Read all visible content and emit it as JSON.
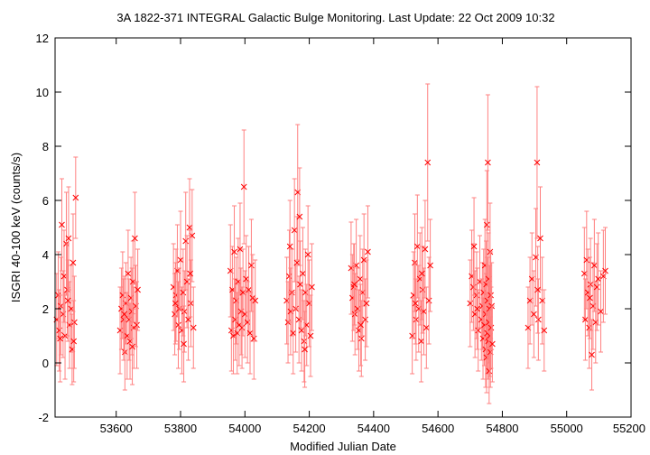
{
  "chart_data": {
    "type": "scatter",
    "title": "3A 1822-371    INTEGRAL Galactic Bulge Monitoring.  Last Update: 22 Oct 2009 10:32",
    "xlabel": "Modified Julian Date",
    "ylabel": "ISGRI 40-100 keV (counts/s)",
    "xlim": [
      53410,
      55200
    ],
    "ylim": [
      -2,
      12
    ],
    "xticks": [
      53600,
      53800,
      54000,
      54200,
      54400,
      54600,
      54800,
      55000,
      55200
    ],
    "yticks": [
      -2,
      0,
      2,
      4,
      6,
      8,
      10,
      12
    ],
    "grid": false,
    "legend": "none",
    "colors": {
      "series": "#ff0000",
      "errorbar": "#ff8080"
    },
    "series": [
      {
        "points": [
          [
            53415,
            1.6,
            1.7
          ],
          [
            53420,
            2.5,
            1.6
          ],
          [
            53423,
            1.2,
            1.5
          ],
          [
            53428,
            2.1,
            1.8
          ],
          [
            53431,
            5.1,
            1.7
          ],
          [
            53435,
            1.8,
            1.6
          ],
          [
            53438,
            3.2,
            1.7
          ],
          [
            53441,
            1.0,
            1.6
          ],
          [
            53445,
            4.4,
            1.9
          ],
          [
            53448,
            2.7,
            1.7
          ],
          [
            53452,
            4.6,
            1.9
          ],
          [
            53455,
            1.4,
            1.6
          ],
          [
            53460,
            2.0,
            1.6
          ],
          [
            53463,
            0.5,
            1.3
          ],
          [
            53466,
            3.7,
            1.8
          ],
          [
            53470,
            1.5,
            1.7
          ],
          [
            53474,
            6.1,
            1.5
          ],
          [
            53450,
            2.3,
            1.5
          ],
          [
            53426,
            0.9,
            1.6
          ],
          [
            53468,
            0.8,
            1.5
          ],
          [
            53612,
            1.2,
            1.6
          ],
          [
            53616,
            2.0,
            1.5
          ],
          [
            53620,
            2.5,
            1.6
          ],
          [
            53623,
            1.6,
            1.5
          ],
          [
            53627,
            0.4,
            1.4
          ],
          [
            53630,
            2.2,
            1.5
          ],
          [
            53634,
            1.0,
            1.6
          ],
          [
            53637,
            3.3,
            1.6
          ],
          [
            53640,
            1.6,
            1.5
          ],
          [
            53643,
            0.8,
            1.4
          ],
          [
            53646,
            2.4,
            1.5
          ],
          [
            53649,
            1.9,
            1.6
          ],
          [
            53652,
            3.0,
            1.5
          ],
          [
            53655,
            1.3,
            1.5
          ],
          [
            53658,
            4.6,
            1.7
          ],
          [
            53661,
            2.1,
            1.5
          ],
          [
            53664,
            1.4,
            1.6
          ],
          [
            53667,
            2.7,
            1.5
          ],
          [
            53625,
            1.8,
            1.4
          ],
          [
            53650,
            0.6,
            1.4
          ],
          [
            53778,
            2.8,
            1.6
          ],
          [
            53782,
            1.8,
            1.5
          ],
          [
            53786,
            2.5,
            1.7
          ],
          [
            53790,
            3.4,
            1.7
          ],
          [
            53793,
            1.4,
            1.6
          ],
          [
            53796,
            2.0,
            1.5
          ],
          [
            53800,
            3.8,
            1.8
          ],
          [
            53804,
            1.2,
            1.6
          ],
          [
            53808,
            2.6,
            1.6
          ],
          [
            53812,
            1.9,
            1.5
          ],
          [
            53816,
            4.5,
            1.8
          ],
          [
            53820,
            3.0,
            1.7
          ],
          [
            53824,
            1.6,
            1.5
          ],
          [
            53828,
            5.0,
            1.8
          ],
          [
            53832,
            2.2,
            1.6
          ],
          [
            53836,
            4.7,
            1.7
          ],
          [
            53840,
            1.3,
            1.5
          ],
          [
            53784,
            2.2,
            1.5
          ],
          [
            53810,
            0.7,
            1.4
          ],
          [
            53830,
            3.3,
            1.6
          ],
          [
            53955,
            3.4,
            1.7
          ],
          [
            53958,
            1.2,
            1.5
          ],
          [
            53961,
            2.7,
            1.6
          ],
          [
            53964,
            1.0,
            1.4
          ],
          [
            53967,
            4.1,
            1.7
          ],
          [
            53970,
            1.6,
            1.5
          ],
          [
            53973,
            2.3,
            1.6
          ],
          [
            53976,
            1.1,
            1.5
          ],
          [
            53979,
            3.0,
            1.6
          ],
          [
            53982,
            1.4,
            1.5
          ],
          [
            53985,
            4.2,
            1.7
          ],
          [
            53988,
            1.9,
            1.6
          ],
          [
            53991,
            1.3,
            1.5
          ],
          [
            53994,
            2.6,
            1.6
          ],
          [
            53997,
            6.5,
            2.1
          ],
          [
            54000,
            1.8,
            1.6
          ],
          [
            54004,
            3.1,
            1.6
          ],
          [
            54008,
            1.5,
            1.5
          ],
          [
            54012,
            2.7,
            1.6
          ],
          [
            54016,
            1.1,
            1.5
          ],
          [
            54020,
            3.6,
            1.7
          ],
          [
            54024,
            2.4,
            1.6
          ],
          [
            54028,
            0.9,
            1.5
          ],
          [
            54032,
            2.3,
            1.5
          ],
          [
            54130,
            2.3,
            1.6
          ],
          [
            54134,
            1.5,
            1.5
          ],
          [
            54138,
            3.2,
            1.7
          ],
          [
            54142,
            1.9,
            1.6
          ],
          [
            54146,
            2.6,
            1.6
          ],
          [
            54150,
            1.1,
            1.5
          ],
          [
            54154,
            4.9,
            1.9
          ],
          [
            54158,
            2.0,
            1.6
          ],
          [
            54162,
            3.7,
            1.7
          ],
          [
            54164,
            6.3,
            2.5
          ],
          [
            54168,
            1.6,
            1.6
          ],
          [
            54172,
            2.9,
            1.6
          ],
          [
            54176,
            1.2,
            1.5
          ],
          [
            54180,
            3.3,
            1.7
          ],
          [
            54184,
            0.8,
            1.5
          ],
          [
            54188,
            2.6,
            1.6
          ],
          [
            54192,
            1.4,
            1.5
          ],
          [
            54196,
            4.0,
            1.8
          ],
          [
            54200,
            2.2,
            1.6
          ],
          [
            54204,
            1.0,
            1.5
          ],
          [
            54208,
            2.8,
            1.6
          ],
          [
            54140,
            4.3,
            1.7
          ],
          [
            54170,
            5.4,
            1.8
          ],
          [
            54186,
            0.5,
            1.4
          ],
          [
            54330,
            3.5,
            1.7
          ],
          [
            54334,
            2.4,
            1.6
          ],
          [
            54338,
            2.8,
            1.6
          ],
          [
            54342,
            1.8,
            1.5
          ],
          [
            54346,
            3.6,
            1.7
          ],
          [
            54350,
            2.0,
            1.5
          ],
          [
            54354,
            1.2,
            1.5
          ],
          [
            54358,
            3.1,
            1.6
          ],
          [
            54362,
            0.9,
            1.4
          ],
          [
            54366,
            2.6,
            1.6
          ],
          [
            54370,
            3.8,
            1.7
          ],
          [
            54374,
            1.6,
            1.5
          ],
          [
            54378,
            2.2,
            1.6
          ],
          [
            54382,
            4.1,
            1.7
          ],
          [
            54340,
            2.9,
            1.5
          ],
          [
            54360,
            1.4,
            1.5
          ],
          [
            54520,
            1.0,
            1.4
          ],
          [
            54524,
            2.5,
            1.6
          ],
          [
            54528,
            3.7,
            1.8
          ],
          [
            54532,
            1.6,
            1.5
          ],
          [
            54536,
            4.3,
            1.9
          ],
          [
            54540,
            2.0,
            1.6
          ],
          [
            54544,
            3.1,
            1.7
          ],
          [
            54548,
            0.8,
            1.5
          ],
          [
            54552,
            2.7,
            1.6
          ],
          [
            54556,
            1.9,
            1.6
          ],
          [
            54560,
            4.2,
            1.8
          ],
          [
            54564,
            1.3,
            1.5
          ],
          [
            54568,
            7.4,
            2.9
          ],
          [
            54572,
            2.3,
            1.6
          ],
          [
            54576,
            3.6,
            1.7
          ],
          [
            54530,
            2.2,
            1.5
          ],
          [
            54550,
            3.3,
            1.7
          ],
          [
            54700,
            2.2,
            1.6
          ],
          [
            54705,
            3.2,
            1.7
          ],
          [
            54710,
            2.8,
            1.6
          ],
          [
            54715,
            1.8,
            1.6
          ],
          [
            54720,
            2.5,
            1.6
          ],
          [
            54725,
            1.2,
            1.5
          ],
          [
            54730,
            3.0,
            1.7
          ],
          [
            54735,
            1.6,
            1.5
          ],
          [
            54738,
            2.1,
            1.6
          ],
          [
            54740,
            0.9,
            1.5
          ],
          [
            54742,
            2.6,
            1.6
          ],
          [
            54744,
            1.4,
            1.5
          ],
          [
            54746,
            3.6,
            1.7
          ],
          [
            54748,
            0.5,
            1.4
          ],
          [
            54749,
            1.8,
            1.5
          ],
          [
            54750,
            2.9,
            1.6
          ],
          [
            54751,
            0.2,
            1.3
          ],
          [
            54752,
            5.1,
            2.0
          ],
          [
            54753,
            1.1,
            1.5
          ],
          [
            54754,
            2.3,
            1.6
          ],
          [
            54755,
            7.4,
            2.5
          ],
          [
            54756,
            0.8,
            1.4
          ],
          [
            54757,
            3.1,
            1.7
          ],
          [
            54758,
            1.5,
            1.5
          ],
          [
            54759,
            -0.3,
            1.2
          ],
          [
            54760,
            2.0,
            1.6
          ],
          [
            54761,
            1.0,
            1.5
          ],
          [
            54762,
            4.1,
            1.8
          ],
          [
            54763,
            0.4,
            1.3
          ],
          [
            54764,
            2.5,
            1.6
          ],
          [
            54765,
            1.3,
            1.5
          ],
          [
            54767,
            2.1,
            1.6
          ],
          [
            54769,
            0.7,
            1.4
          ],
          [
            54712,
            4.3,
            1.8
          ],
          [
            54722,
            2.0,
            1.5
          ],
          [
            54880,
            1.3,
            1.5
          ],
          [
            54886,
            2.3,
            1.6
          ],
          [
            54892,
            3.1,
            1.7
          ],
          [
            54898,
            1.8,
            1.6
          ],
          [
            54904,
            3.9,
            1.8
          ],
          [
            54908,
            7.4,
            2.8
          ],
          [
            54912,
            1.6,
            1.5
          ],
          [
            54918,
            4.6,
            1.9
          ],
          [
            54924,
            2.3,
            1.6
          ],
          [
            54930,
            1.2,
            1.5
          ],
          [
            54910,
            2.7,
            1.6
          ],
          [
            55055,
            3.3,
            1.7
          ],
          [
            55058,
            1.6,
            1.5
          ],
          [
            55062,
            3.8,
            1.8
          ],
          [
            55066,
            2.6,
            1.6
          ],
          [
            55070,
            1.3,
            1.5
          ],
          [
            55074,
            2.9,
            1.7
          ],
          [
            55078,
            0.3,
            1.3
          ],
          [
            55082,
            2.1,
            1.6
          ],
          [
            55086,
            3.6,
            1.7
          ],
          [
            55090,
            1.5,
            1.5
          ],
          [
            55094,
            2.8,
            1.6
          ],
          [
            55098,
            3.1,
            1.7
          ],
          [
            55106,
            1.9,
            1.5
          ],
          [
            55114,
            3.2,
            1.7
          ],
          [
            55120,
            3.4,
            1.6
          ],
          [
            55072,
            2.4,
            1.5
          ]
        ]
      }
    ]
  }
}
